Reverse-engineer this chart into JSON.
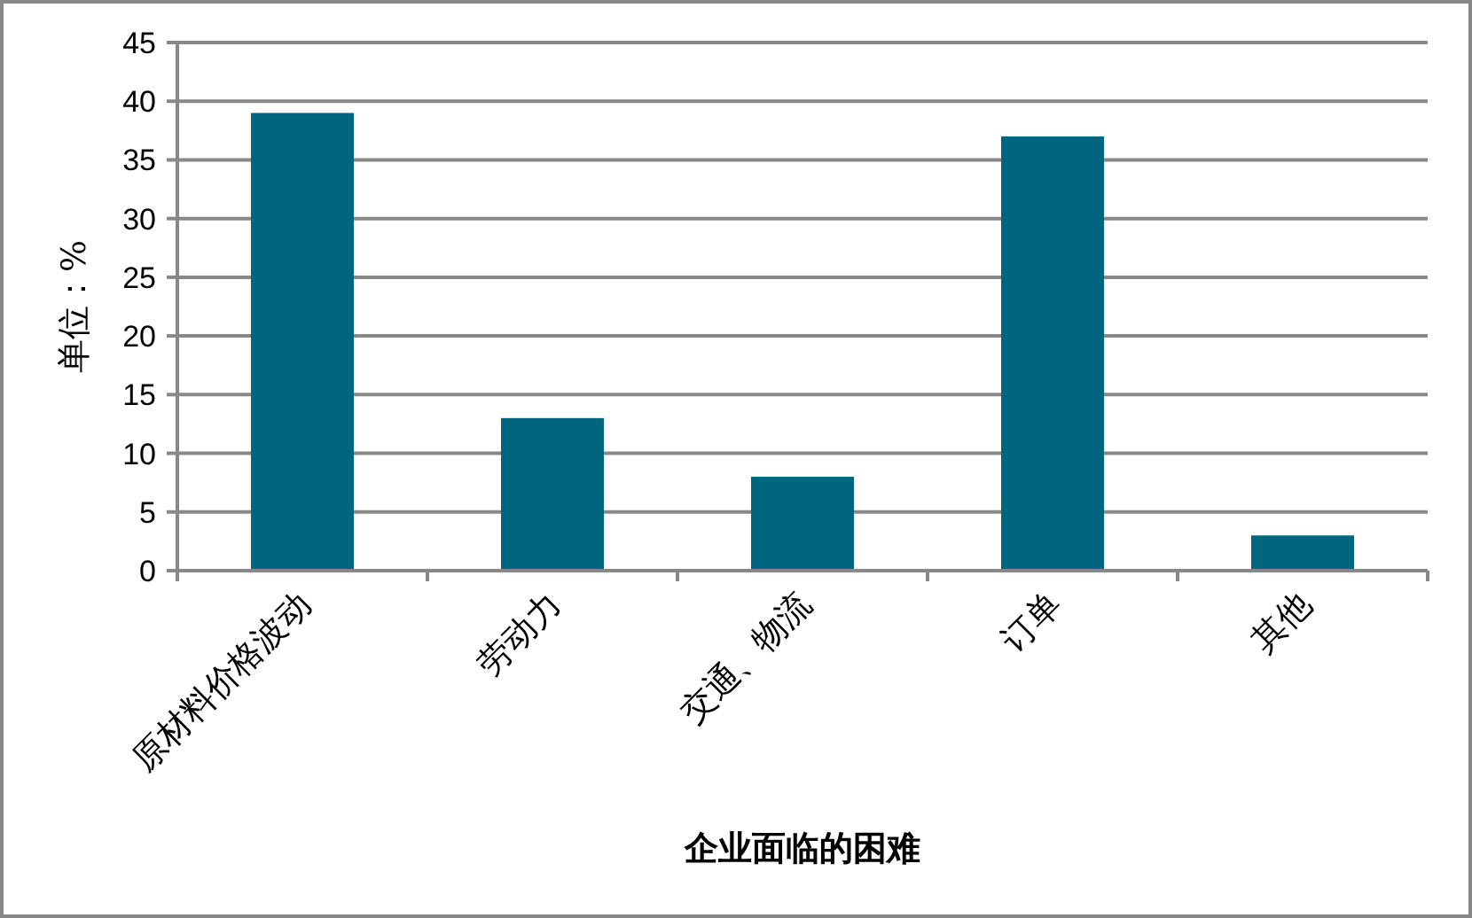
{
  "chart_data": {
    "type": "bar",
    "xlabel": "企业面临的困难",
    "ylabel": "单位：%",
    "categories": [
      "原材料价格波动",
      "劳动力",
      "交通、物流",
      "订单",
      "其他"
    ],
    "values": [
      39,
      13,
      8,
      37,
      3
    ],
    "color": "#00667f",
    "ylim": [
      0,
      45
    ],
    "yticks": [
      0,
      5,
      10,
      15,
      20,
      25,
      30,
      35,
      40,
      45
    ],
    "grid": "y"
  }
}
